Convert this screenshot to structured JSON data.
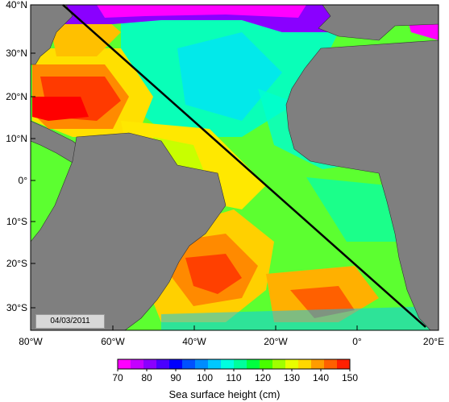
{
  "map": {
    "date_stamp": "04/03/2011",
    "lat_labels": [
      "40°N",
      "30°N",
      "20°N",
      "10°N",
      "0°",
      "10°S",
      "20°S",
      "30°S"
    ],
    "lon_labels": [
      "80°W",
      "60°W",
      "40°W",
      "20°W",
      "0°",
      "20°E"
    ],
    "land_color": "#7f7f7f",
    "transect_color": "#000000"
  },
  "colorbar": {
    "title": "Sea surface height (cm)",
    "ticks": [
      "70",
      "80",
      "90",
      "100",
      "110",
      "120",
      "130",
      "140",
      "150"
    ],
    "colors": [
      "#ff00ff",
      "#c400ff",
      "#8a00ff",
      "#4a00ff",
      "#0000ff",
      "#0050ff",
      "#008cff",
      "#00c8ff",
      "#00ffe0",
      "#00ff9c",
      "#00ff40",
      "#48ff00",
      "#a0ff00",
      "#e8ff00",
      "#ffd800",
      "#ff9c00",
      "#ff6000",
      "#ff2000"
    ]
  }
}
